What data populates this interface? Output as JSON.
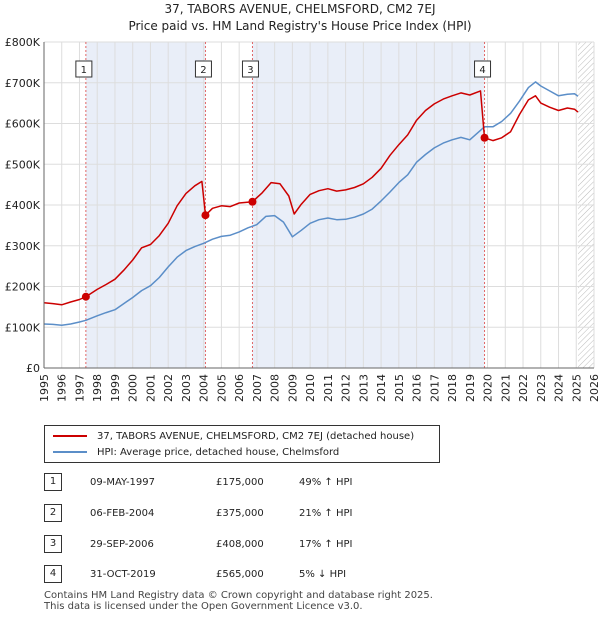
{
  "chart_data": {
    "type": "line",
    "title": "37, TABORS AVENUE, CHELMSFORD, CM2 7EJ",
    "subtitle": "Price paid vs. HM Land Registry's House Price Index (HPI)",
    "xlim": [
      1995,
      2026
    ],
    "ylim": [
      0,
      800000
    ],
    "x_ticks": [
      1995,
      1996,
      1997,
      1998,
      1999,
      2000,
      2001,
      2002,
      2003,
      2004,
      2005,
      2006,
      2007,
      2008,
      2009,
      2010,
      2011,
      2012,
      2013,
      2014,
      2015,
      2016,
      2017,
      2018,
      2019,
      2020,
      2021,
      2022,
      2023,
      2024,
      2025,
      2026
    ],
    "y_ticks": [
      {
        "value": 0,
        "label": "£0"
      },
      {
        "value": 100000,
        "label": "£100K"
      },
      {
        "value": 200000,
        "label": "£200K"
      },
      {
        "value": 300000,
        "label": "£300K"
      },
      {
        "value": 400000,
        "label": "£400K"
      },
      {
        "value": 500000,
        "label": "£500K"
      },
      {
        "value": 600000,
        "label": "£600K"
      },
      {
        "value": 700000,
        "label": "£700K"
      },
      {
        "value": 800000,
        "label": "£800K"
      }
    ],
    "shaded_bands": [
      [
        1997.36,
        2004.1
      ],
      [
        2006.75,
        2019.83
      ]
    ],
    "future_hatch_from": 2025.1,
    "series": [
      {
        "name": "37, TABORS AVENUE, CHELMSFORD, CM2 7EJ (detached house)",
        "color": "#cc0000",
        "points": [
          [
            1995.0,
            160000
          ],
          [
            1995.5,
            158000
          ],
          [
            1996.0,
            155000
          ],
          [
            1996.5,
            162000
          ],
          [
            1997.0,
            168000
          ],
          [
            1997.36,
            175000
          ],
          [
            1998.0,
            193000
          ],
          [
            1998.5,
            205000
          ],
          [
            1999.0,
            218000
          ],
          [
            1999.5,
            240000
          ],
          [
            2000.0,
            265000
          ],
          [
            2000.5,
            295000
          ],
          [
            2001.0,
            303000
          ],
          [
            2001.5,
            325000
          ],
          [
            2002.0,
            355000
          ],
          [
            2002.5,
            398000
          ],
          [
            2003.0,
            428000
          ],
          [
            2003.5,
            447000
          ],
          [
            2003.9,
            458000
          ],
          [
            2004.1,
            375000
          ],
          [
            2004.5,
            392000
          ],
          [
            2005.0,
            398000
          ],
          [
            2005.5,
            396000
          ],
          [
            2006.0,
            405000
          ],
          [
            2006.75,
            408000
          ],
          [
            2007.3,
            430000
          ],
          [
            2007.8,
            455000
          ],
          [
            2008.3,
            452000
          ],
          [
            2008.8,
            422000
          ],
          [
            2009.1,
            378000
          ],
          [
            2009.5,
            402000
          ],
          [
            2010.0,
            426000
          ],
          [
            2010.5,
            435000
          ],
          [
            2011.0,
            440000
          ],
          [
            2011.5,
            434000
          ],
          [
            2012.0,
            437000
          ],
          [
            2012.5,
            443000
          ],
          [
            2013.0,
            452000
          ],
          [
            2013.5,
            468000
          ],
          [
            2014.0,
            490000
          ],
          [
            2014.5,
            522000
          ],
          [
            2015.0,
            548000
          ],
          [
            2015.5,
            572000
          ],
          [
            2016.0,
            608000
          ],
          [
            2016.5,
            632000
          ],
          [
            2017.0,
            648000
          ],
          [
            2017.5,
            660000
          ],
          [
            2018.0,
            668000
          ],
          [
            2018.5,
            675000
          ],
          [
            2019.0,
            670000
          ],
          [
            2019.6,
            680000
          ],
          [
            2019.83,
            565000
          ],
          [
            2020.3,
            558000
          ],
          [
            2020.8,
            565000
          ],
          [
            2021.3,
            580000
          ],
          [
            2021.8,
            622000
          ],
          [
            2022.3,
            658000
          ],
          [
            2022.7,
            668000
          ],
          [
            2023.0,
            650000
          ],
          [
            2023.5,
            640000
          ],
          [
            2024.0,
            632000
          ],
          [
            2024.5,
            638000
          ],
          [
            2024.9,
            635000
          ],
          [
            2025.1,
            628000
          ]
        ]
      },
      {
        "name": "HPI: Average price, detached house, Chelmsford",
        "color": "#5b8ec8",
        "points": [
          [
            1995.0,
            108000
          ],
          [
            1995.5,
            107000
          ],
          [
            1996.0,
            105000
          ],
          [
            1996.5,
            108000
          ],
          [
            1997.0,
            113000
          ],
          [
            1997.36,
            117000
          ],
          [
            1998.0,
            128000
          ],
          [
            1998.5,
            136000
          ],
          [
            1999.0,
            143000
          ],
          [
            1999.5,
            158000
          ],
          [
            2000.0,
            173000
          ],
          [
            2000.5,
            190000
          ],
          [
            2001.0,
            202000
          ],
          [
            2001.5,
            222000
          ],
          [
            2002.0,
            248000
          ],
          [
            2002.5,
            272000
          ],
          [
            2003.0,
            288000
          ],
          [
            2003.5,
            298000
          ],
          [
            2004.0,
            306000
          ],
          [
            2004.5,
            316000
          ],
          [
            2005.0,
            323000
          ],
          [
            2005.5,
            326000
          ],
          [
            2006.0,
            334000
          ],
          [
            2006.5,
            344000
          ],
          [
            2007.0,
            352000
          ],
          [
            2007.5,
            372000
          ],
          [
            2008.0,
            374000
          ],
          [
            2008.5,
            358000
          ],
          [
            2009.0,
            322000
          ],
          [
            2009.5,
            338000
          ],
          [
            2010.0,
            355000
          ],
          [
            2010.5,
            364000
          ],
          [
            2011.0,
            368000
          ],
          [
            2011.5,
            364000
          ],
          [
            2012.0,
            365000
          ],
          [
            2012.5,
            370000
          ],
          [
            2013.0,
            378000
          ],
          [
            2013.5,
            390000
          ],
          [
            2014.0,
            410000
          ],
          [
            2014.5,
            432000
          ],
          [
            2015.0,
            455000
          ],
          [
            2015.5,
            474000
          ],
          [
            2016.0,
            505000
          ],
          [
            2016.5,
            524000
          ],
          [
            2017.0,
            540000
          ],
          [
            2017.5,
            552000
          ],
          [
            2018.0,
            560000
          ],
          [
            2018.5,
            566000
          ],
          [
            2019.0,
            560000
          ],
          [
            2019.83,
            592000
          ],
          [
            2020.3,
            592000
          ],
          [
            2020.8,
            605000
          ],
          [
            2021.3,
            625000
          ],
          [
            2021.8,
            655000
          ],
          [
            2022.3,
            688000
          ],
          [
            2022.7,
            702000
          ],
          [
            2023.0,
            692000
          ],
          [
            2023.5,
            680000
          ],
          [
            2024.0,
            668000
          ],
          [
            2024.5,
            672000
          ],
          [
            2024.9,
            673000
          ],
          [
            2025.1,
            667000
          ]
        ]
      }
    ],
    "sales": [
      {
        "id": "1",
        "x": 1997.36,
        "y": 175000
      },
      {
        "id": "2",
        "x": 2004.1,
        "y": 375000
      },
      {
        "id": "3",
        "x": 2006.75,
        "y": 408000
      },
      {
        "id": "4",
        "x": 2019.83,
        "y": 565000
      }
    ]
  },
  "legend": {
    "property_label": "37, TABORS AVENUE, CHELMSFORD, CM2 7EJ (detached house)",
    "hpi_label": "HPI: Average price, detached house, Chelmsford",
    "property_color": "#cc0000",
    "hpi_color": "#5b8ec8"
  },
  "sales_table": [
    {
      "num": "1",
      "date": "09-MAY-1997",
      "price": "£175,000",
      "hpi": "49% ↑ HPI"
    },
    {
      "num": "2",
      "date": "06-FEB-2004",
      "price": "£375,000",
      "hpi": "21% ↑ HPI"
    },
    {
      "num": "3",
      "date": "29-SEP-2006",
      "price": "£408,000",
      "hpi": "17% ↑ HPI"
    },
    {
      "num": "4",
      "date": "31-OCT-2019",
      "price": "£565,000",
      "hpi": "5% ↓ HPI"
    }
  ],
  "footer": {
    "line1": "Contains HM Land Registry data © Crown copyright and database right 2025.",
    "line2": "This data is licensed under the Open Government Licence v3.0."
  }
}
